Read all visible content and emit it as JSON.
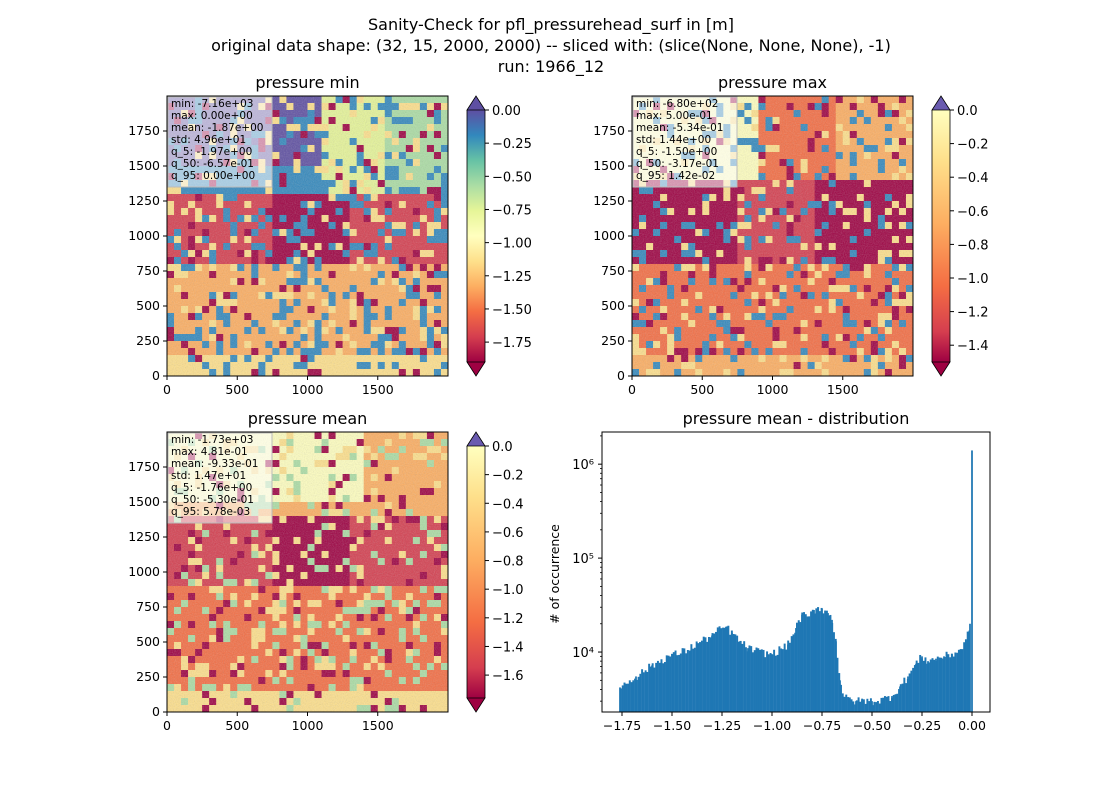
{
  "figure": {
    "title_lines": [
      "Sanity-Check for pfl_pressurehead_surf in [m]",
      "original data shape: (32, 15, 2000, 2000) -- sliced with: (slice(None, None, None), -1)",
      "run: 1966_12"
    ]
  },
  "colors": {
    "spectral": [
      "#9e0142",
      "#d53e4f",
      "#f46d43",
      "#fdae61",
      "#fee08b",
      "#ffffbf",
      "#e6f598",
      "#abdda4",
      "#66c2a5",
      "#3288bd",
      "#5e4fa2"
    ],
    "hist_bar": "#1f77b4",
    "stats_box": "#ffffffaa"
  },
  "chart_data": [
    {
      "type": "heatmap",
      "title": "pressure min",
      "xlim": [
        0,
        2000
      ],
      "ylim": [
        0,
        2000
      ],
      "xticks": [
        0,
        500,
        1000,
        1500
      ],
      "yticks": [
        0,
        250,
        500,
        750,
        1000,
        1250,
        1500,
        1750
      ],
      "colormap": "Spectral",
      "colorbar": {
        "vmin": -1.9,
        "vmax": 0.0,
        "ticks": [
          "0.00",
          "-0.25",
          "-0.50",
          "-0.75",
          "-1.00",
          "-1.25",
          "-1.50",
          "-1.75"
        ],
        "tick_values": [
          0,
          -0.25,
          -0.5,
          -0.75,
          -1.0,
          -1.25,
          -1.5,
          -1.75
        ],
        "extend": "both"
      },
      "stats": [
        "min: -7.16e+03",
        "max: 0.00e+00",
        "mean: -1.87e+00",
        "std: 4.96e+01",
        "q_5: -1.97e+00",
        "q_50: -6.57e-01",
        "q_95: 0.00e+00"
      ]
    },
    {
      "type": "heatmap",
      "title": "pressure max",
      "xlim": [
        0,
        2000
      ],
      "ylim": [
        0,
        2000
      ],
      "xticks": [
        0,
        500,
        1000,
        1500
      ],
      "yticks": [
        0,
        250,
        500,
        750,
        1000,
        1250,
        1500,
        1750
      ],
      "colormap": "Spectral",
      "colorbar": {
        "vmin": -1.5,
        "vmax": 0.0,
        "ticks": [
          "0.0",
          "-0.2",
          "-0.4",
          "-0.6",
          "-0.8",
          "-1.0",
          "-1.2",
          "-1.4"
        ],
        "tick_values": [
          0,
          -0.2,
          -0.4,
          -0.6,
          -0.8,
          -1.0,
          -1.2,
          -1.4
        ],
        "extend": "both"
      },
      "stats": [
        "min: -6.80e+02",
        "max: 5.00e-01",
        "mean: -5.34e-01",
        "std: 1.44e+00",
        "q_5: -1.50e+00",
        "q_50: -3.17e-01",
        "q_95: 1.42e-02"
      ]
    },
    {
      "type": "heatmap",
      "title": "pressure mean",
      "xlim": [
        0,
        2000
      ],
      "ylim": [
        0,
        2000
      ],
      "xticks": [
        0,
        500,
        1000,
        1500
      ],
      "yticks": [
        0,
        250,
        500,
        750,
        1000,
        1250,
        1500,
        1750
      ],
      "colormap": "Spectral",
      "colorbar": {
        "vmin": -1.76,
        "vmax": 0.0,
        "ticks": [
          "0.0",
          "-0.2",
          "-0.4",
          "-0.6",
          "-0.8",
          "-1.0",
          "-1.2",
          "-1.4",
          "-1.6"
        ],
        "tick_values": [
          0,
          -0.2,
          -0.4,
          -0.6,
          -0.8,
          -1.0,
          -1.2,
          -1.4,
          -1.6
        ],
        "extend": "both"
      },
      "stats": [
        "min: -1.73e+03",
        "max: 4.81e-01",
        "mean: -9.33e-01",
        "std: 1.47e+01",
        "q_5: -1.76e+00",
        "q_50: -5.30e-01",
        "q_95: 5.78e-03"
      ]
    },
    {
      "type": "bar",
      "title": "pressure mean - distribution",
      "ylabel": "# of occurrence",
      "yscale": "log",
      "xlim": [
        -1.85,
        0.09
      ],
      "ylim": [
        2300,
        2200000
      ],
      "xticks": [
        -1.75,
        -1.5,
        -1.25,
        -1.0,
        -0.75,
        -0.5,
        -0.25,
        0.0
      ],
      "xtick_labels": [
        "−1.75",
        "−1.50",
        "−1.25",
        "−1.00",
        "−0.75",
        "−0.50",
        "−0.25",
        "0.00"
      ],
      "yticks": [
        10000,
        100000,
        1000000
      ],
      "ytick_labels": [
        "10⁴",
        "10⁵",
        "10⁶"
      ],
      "x": [
        -1.76,
        -1.68,
        -1.6,
        -1.52,
        -1.44,
        -1.36,
        -1.3,
        -1.26,
        -1.23,
        -1.2,
        -1.16,
        -1.12,
        -1.06,
        -1.0,
        -0.92,
        -0.88,
        -0.85,
        -0.82,
        -0.79,
        -0.77,
        -0.75,
        -0.72,
        -0.7,
        -0.68,
        -0.66,
        -0.64,
        -0.61,
        -0.58,
        -0.55,
        -0.5,
        -0.45,
        -0.4,
        -0.36,
        -0.32,
        -0.28,
        -0.25,
        -0.22,
        -0.18,
        -0.14,
        -0.1,
        -0.06,
        -0.03,
        -0.01,
        0.0
      ],
      "y": [
        4200,
        5500,
        7200,
        9000,
        10200,
        12800,
        15000,
        17500,
        18500,
        16000,
        13000,
        11000,
        10000,
        9500,
        12000,
        18000,
        25000,
        23000,
        28000,
        30000,
        29000,
        26000,
        22000,
        13000,
        5000,
        3300,
        3100,
        3000,
        3050,
        3000,
        3100,
        3400,
        4300,
        5500,
        7500,
        9000,
        8000,
        8500,
        9000,
        9500,
        10500,
        13000,
        20000,
        1400000
      ]
    }
  ]
}
